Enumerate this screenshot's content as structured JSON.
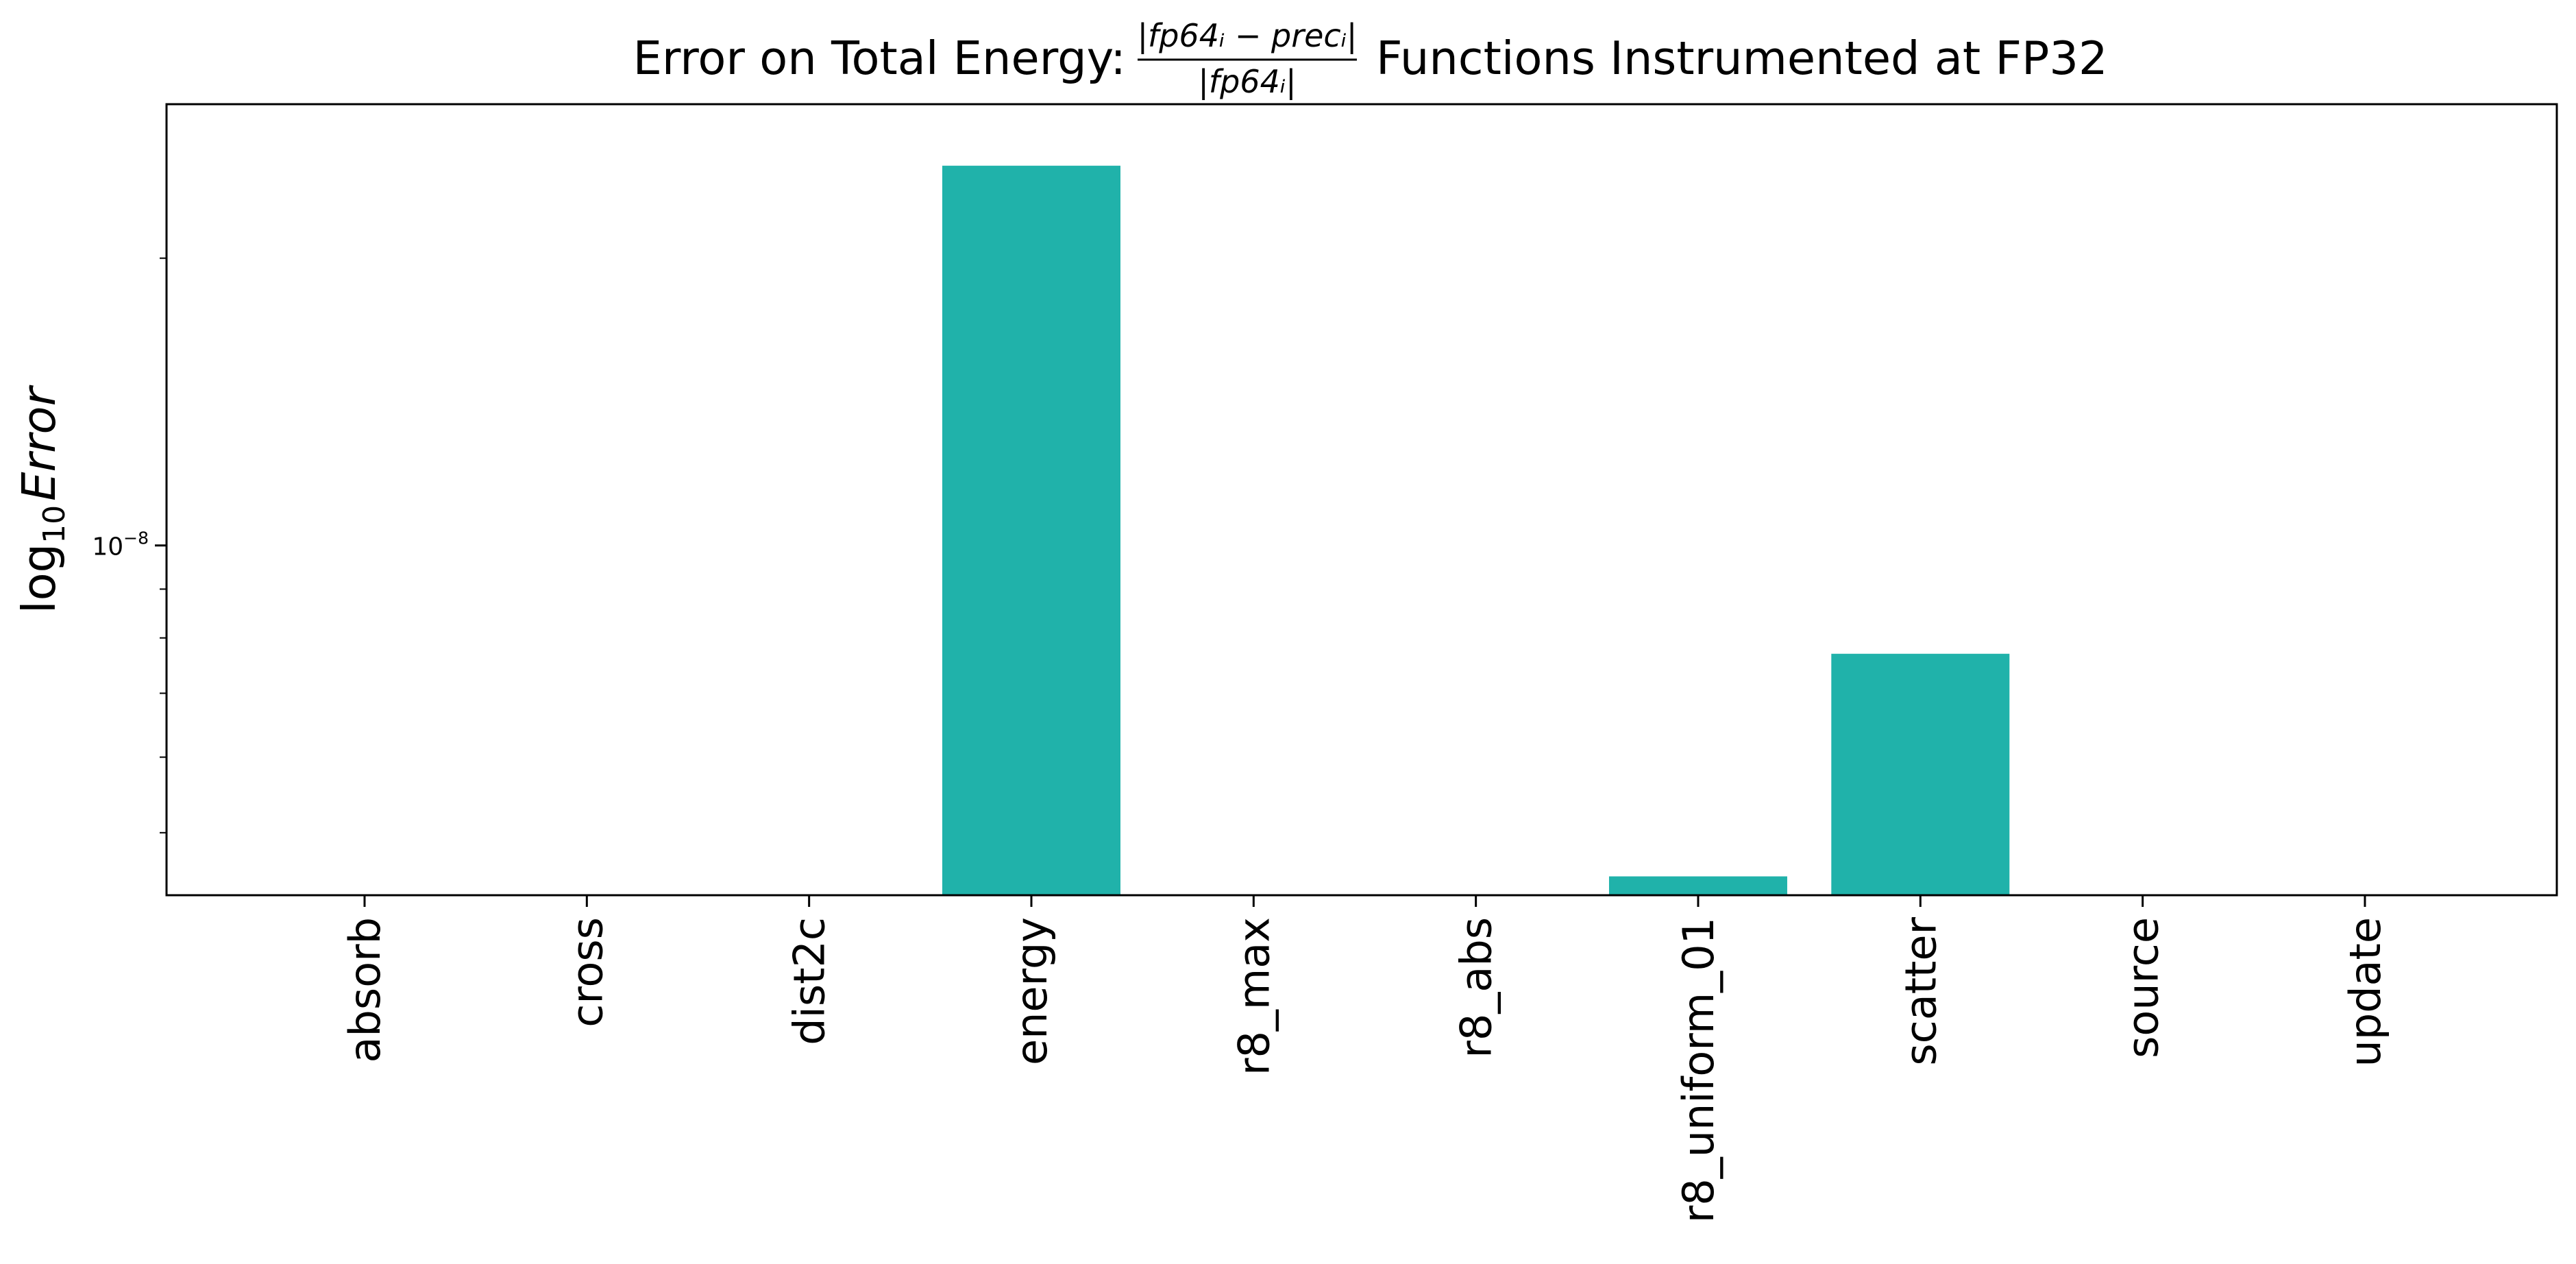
{
  "chart_data": {
    "type": "bar",
    "title": {
      "prefix": "Error on Total Energy:",
      "fraction_numerator": "|fp64ᵢ − precᵢ|",
      "fraction_denominator": "|fp64ᵢ|",
      "suffix": "Functions Instrumented at FP32"
    },
    "ylabel": {
      "prefix": "log",
      "subscript": "10",
      "italic": "Error"
    },
    "xlabel": "",
    "yscale": "log",
    "ylim": [
      4.3e-09,
      2.9e-08
    ],
    "yticks": [
      {
        "value": 1e-08,
        "base": "10",
        "exponent": "−8"
      }
    ],
    "bar_color": "#20b2aa",
    "grid": false,
    "categories": [
      "absorb",
      "cross",
      "dist2c",
      "energy",
      "r8_max",
      "r8_abs",
      "r8_uniform_01",
      "scatter",
      "source",
      "update"
    ],
    "values": [
      0,
      0,
      0,
      2.5e-08,
      0,
      0,
      4.5e-09,
      7.7e-09,
      0,
      0
    ]
  }
}
